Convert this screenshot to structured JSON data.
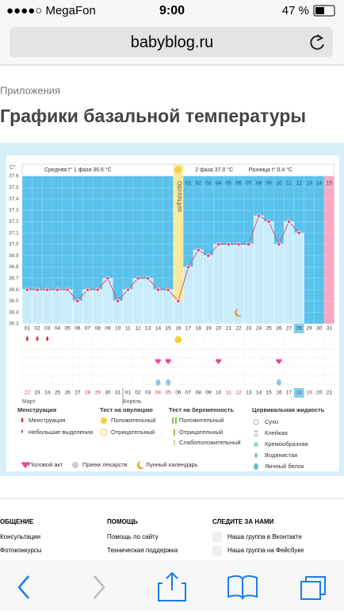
{
  "status_bar": {
    "carrier": "●●●●○ MegaFon",
    "time": "9:00",
    "battery": "47 %"
  },
  "browser": {
    "url": "babyblog.ru"
  },
  "page": {
    "section": "Приложения",
    "title": "Графики базальной температуры"
  },
  "chart_data": {
    "type": "line",
    "y_label": "C°",
    "phase1": "Средняя t° 1 фаза 36.6 °C",
    "phase2": "2 фаза 37.0 °C",
    "difference": "Разница t° 0.4 °C",
    "ovulation": "ОВУЛЯЦИЯ",
    "categories": [
      "01",
      "02",
      "03",
      "04",
      "05",
      "06",
      "07",
      "08",
      "09",
      "10",
      "11",
      "12",
      "13",
      "14",
      "15",
      "16",
      "17",
      "18",
      "19",
      "20",
      "21",
      "22",
      "23",
      "24",
      "25",
      "26",
      "27",
      "28",
      "29",
      "30",
      "31"
    ],
    "phase2_days": [
      "01",
      "02",
      "03",
      "04",
      "05",
      "06",
      "07",
      "08",
      "09",
      "10",
      "11",
      "12",
      "13",
      "14",
      "15"
    ],
    "dates": [
      "22",
      "23",
      "24",
      "25",
      "26",
      "27",
      "28",
      "29",
      "30",
      "31",
      "01",
      "02",
      "03",
      "04",
      "05",
      "06",
      "07",
      "08",
      "09",
      "10",
      "11",
      "12",
      "13",
      "14",
      "15",
      "16",
      "17",
      "18",
      "19",
      "20",
      "21"
    ],
    "months": [
      "Март",
      "Апрель"
    ],
    "values": [
      36.6,
      36.6,
      36.6,
      36.6,
      36.6,
      36.5,
      36.6,
      36.6,
      36.7,
      36.5,
      36.6,
      36.7,
      36.7,
      36.6,
      36.6,
      36.5,
      36.8,
      36.95,
      36.9,
      37.0,
      37.0,
      37.0,
      37.0,
      37.25,
      37.2,
      37.0,
      37.2,
      37.1,
      null,
      null,
      null
    ],
    "ylim": [
      36.3,
      37.6
    ],
    "yticks": [
      36.3,
      36.4,
      36.5,
      36.6,
      36.7,
      36.8,
      36.9,
      {
        "value": 37,
        "label": "37.0"
      },
      37.1,
      37.2,
      37.3,
      37.4,
      37.5,
      37.6
    ],
    "color": "#d9527f"
  },
  "legend": {
    "menstruation": {
      "title": "Менструация",
      "items": [
        "Менструация",
        "Небольшие выделения"
      ]
    },
    "ovulation_test": {
      "title": "Тест на овуляцию",
      "items": [
        "Положительный",
        "Отрицательный"
      ]
    },
    "pregnancy_test": {
      "title": "Тест на беременность",
      "items": [
        "Положительный",
        "Отрицательный",
        "Слабоположительный"
      ]
    },
    "cervical": {
      "title": "Цервикальная жидкость",
      "items": [
        "Сухо",
        "Клейкая",
        "Кремообразная",
        "Водянистая",
        "Яичный белок"
      ]
    },
    "other": [
      "Половой акт",
      "Прием лекарств",
      "Лунный календарь"
    ]
  },
  "footer": {
    "columns": [
      {
        "title": "ОБЩЕНИЕ",
        "links": [
          "Консультации",
          "Фотоконкурсы"
        ]
      },
      {
        "title": "ПОМОЩЬ",
        "links": [
          "Помощь по сайту",
          "Техническая поддержка"
        ]
      },
      {
        "title": "СЛЕДИТЕ ЗА НАМИ",
        "links": [
          "Наша группа в Вконтакте",
          "Наша группа на Фейсбуке"
        ]
      }
    ]
  }
}
